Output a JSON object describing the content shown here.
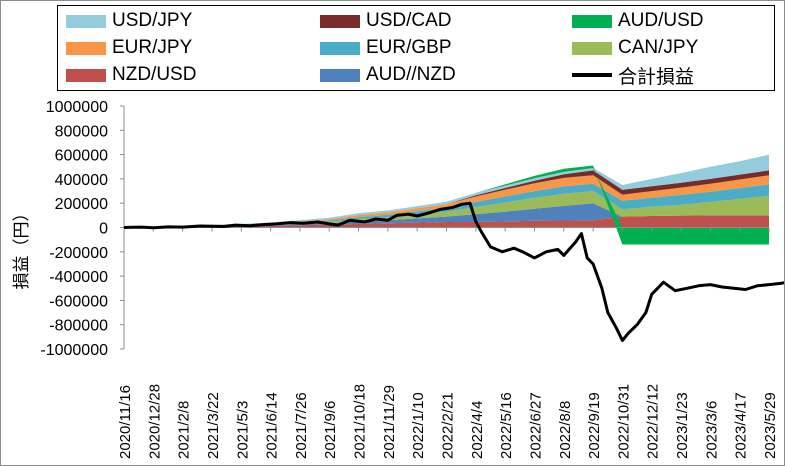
{
  "chart_data": {
    "type": "area",
    "stacked": true,
    "y_label": "損益（円）",
    "ylim": [
      -1000000,
      1000000
    ],
    "y_ticks": [
      1000000,
      800000,
      600000,
      400000,
      200000,
      0,
      -200000,
      -400000,
      -600000,
      -800000,
      -1000000
    ],
    "y_tick_labels": [
      "1000000",
      "800000",
      "600000",
      "400000",
      "200000",
      "0",
      "-200000",
      "-400000",
      "-600000",
      "-800000",
      "-1000000"
    ],
    "x_tick_labels": [
      "2020/11/16",
      "2020/12/28",
      "2021/2/8",
      "2021/3/22",
      "2021/5/3",
      "2021/6/14",
      "2021/7/26",
      "2021/9/6",
      "2021/10/18",
      "2021/11/29",
      "2022/1/10",
      "2022/2/21",
      "2022/4/4",
      "2022/5/16",
      "2022/6/27",
      "2022/8/8",
      "2022/9/19",
      "2022/10/31",
      "2022/12/12",
      "2023/1/23",
      "2023/3/6",
      "2023/4/17",
      "2023/5/29"
    ],
    "legend_position": "top",
    "grid": false,
    "series": [
      {
        "name": "NZD/USD",
        "color": "#c0504d",
        "values": [
          0,
          2000,
          4000,
          6000,
          8000,
          12000,
          18000,
          24000,
          30000,
          35000,
          40000,
          45000,
          45000,
          50000,
          55000,
          58000,
          60000,
          90000,
          95000,
          98000,
          100000,
          100000,
          100000
        ]
      },
      {
        "name": "AUD//NZD",
        "color": "#4f81bd",
        "values": [
          0,
          1000,
          2000,
          3000,
          4000,
          5000,
          8000,
          12000,
          20000,
          25000,
          35000,
          45000,
          65000,
          80000,
          100000,
          120000,
          140000,
          0,
          0,
          0,
          0,
          0,
          0
        ]
      },
      {
        "name": "CAN/JPY",
        "color": "#9bbb59",
        "values": [
          0,
          1000,
          2000,
          3000,
          4000,
          6000,
          9000,
          12000,
          20000,
          24000,
          32000,
          40000,
          58000,
          75000,
          90000,
          100000,
          100000,
          60000,
          75000,
          90000,
          110000,
          135000,
          160000
        ]
      },
      {
        "name": "EUR/GBP",
        "color": "#4bacc6",
        "values": [
          0,
          1000,
          2000,
          3000,
          4000,
          5000,
          8000,
          10000,
          16000,
          20000,
          26000,
          32000,
          42000,
          50000,
          55000,
          60000,
          60000,
          70000,
          75000,
          80000,
          85000,
          90000,
          95000
        ]
      },
      {
        "name": "EUR/JPY",
        "color": "#f79646",
        "values": [
          0,
          1000,
          2000,
          3000,
          4000,
          5000,
          8000,
          10000,
          16000,
          20000,
          25000,
          30000,
          45000,
          55000,
          65000,
          70000,
          70000,
          50000,
          55000,
          60000,
          65000,
          70000,
          75000
        ]
      },
      {
        "name": "USD/CAD",
        "color": "#772c2a",
        "values": [
          0,
          0,
          0,
          0,
          0,
          0,
          0,
          0,
          0,
          0,
          0,
          0,
          10000,
          15000,
          20000,
          30000,
          40000,
          40000,
          40000,
          40000,
          40000,
          40000,
          40000
        ]
      },
      {
        "name": "USD/JPY",
        "color": "#93cddd",
        "values": [
          0,
          2000,
          3000,
          5000,
          6000,
          8000,
          10000,
          12000,
          15000,
          16000,
          18000,
          20000,
          20000,
          20000,
          20000,
          20000,
          20000,
          40000,
          60000,
          80000,
          100000,
          110000,
          130000
        ]
      },
      {
        "name": "AUD/USD",
        "color": "#00b050",
        "values": [
          0,
          0,
          0,
          0,
          0,
          0,
          0,
          0,
          0,
          0,
          0,
          0,
          0,
          10000,
          20000,
          25000,
          20000,
          -140000,
          -140000,
          -140000,
          -140000,
          -140000,
          -140000
        ]
      }
    ],
    "line_series": {
      "name": "合計損益",
      "color": "#000000",
      "x": [
        0,
        0.6,
        1,
        1.5,
        2,
        2.6,
        3,
        3.4,
        3.8,
        4.3,
        4.8,
        5.2,
        5.7,
        6.1,
        6.6,
        7,
        7.3,
        7.7,
        8.2,
        8.6,
        9,
        9.3,
        9.7,
        10,
        10.4,
        10.8,
        11.2,
        11.5,
        11.8,
        12,
        12.2,
        12.5,
        12.9,
        13.3,
        13.6,
        14,
        14.4,
        14.8,
        15,
        15.4,
        15.6,
        15.8,
        16,
        16.3,
        16.5,
        16.8,
        17,
        17.2,
        17.5,
        17.8,
        18,
        18.4,
        18.8,
        19.2,
        19.6,
        20,
        20.4,
        20.8,
        21.2,
        21.6,
        22,
        22.4,
        22.8,
        23
      ],
      "values": [
        0,
        3000,
        -2000,
        5000,
        3000,
        12000,
        10000,
        8000,
        20000,
        15000,
        25000,
        30000,
        40000,
        35000,
        45000,
        30000,
        20000,
        60000,
        45000,
        70000,
        60000,
        100000,
        110000,
        95000,
        120000,
        150000,
        165000,
        190000,
        200000,
        50000,
        -40000,
        -160000,
        -200000,
        -170000,
        -200000,
        -250000,
        -200000,
        -180000,
        -230000,
        -120000,
        -50000,
        -250000,
        -300000,
        -500000,
        -700000,
        -830000,
        -930000,
        -870000,
        -800000,
        -700000,
        -550000,
        -450000,
        -520000,
        -500000,
        -480000,
        -470000,
        -490000,
        -500000,
        -510000,
        -480000,
        -470000,
        -460000,
        -440000,
        -430000
      ]
    }
  }
}
